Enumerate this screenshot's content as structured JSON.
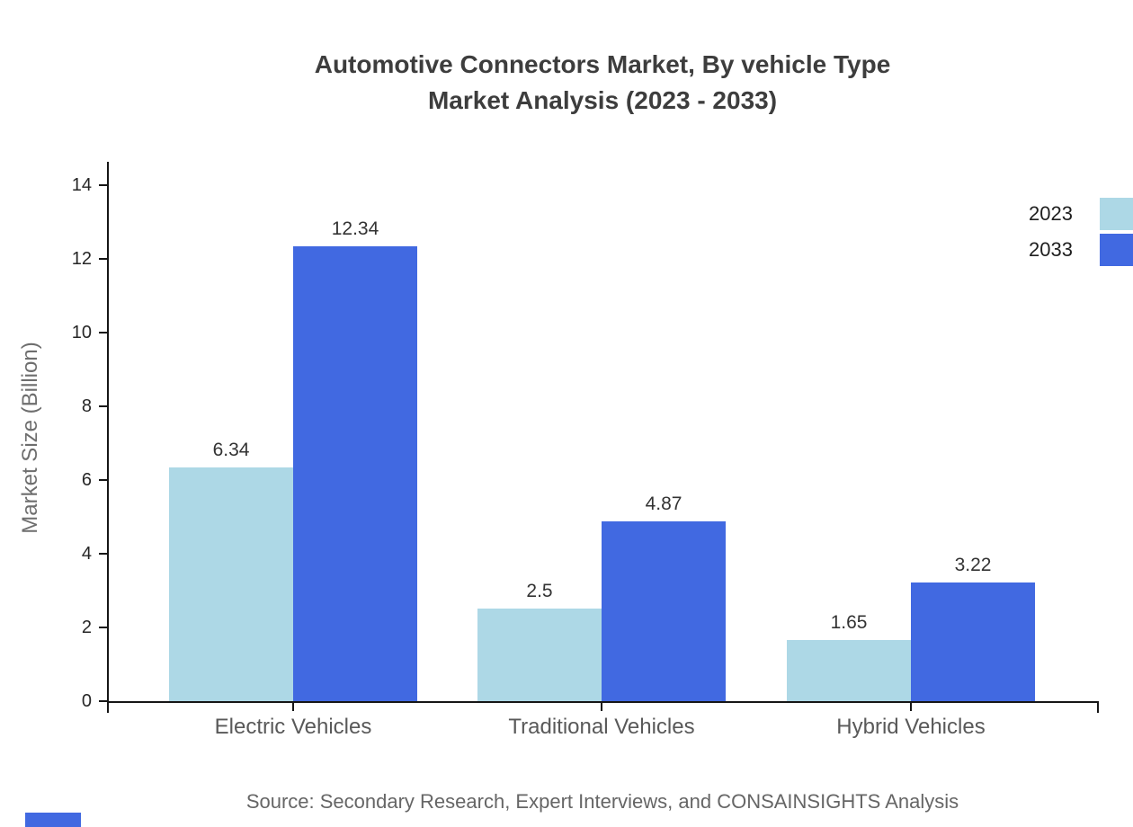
{
  "title": {
    "line1": "Automotive Connectors Market, By vehicle Type",
    "line2": "Market Analysis (2023 - 2033)"
  },
  "source": "Source: Secondary Research, Expert Interviews, and CONSAINSIGHTS Analysis",
  "colors": {
    "series_2023": "#ADD8E6",
    "series_2033": "#4169E1",
    "axis": "#161616",
    "watermark": "#4169E1"
  },
  "chart_data": {
    "type": "bar",
    "categories": [
      "Electric Vehicles",
      "Traditional Vehicles",
      "Hybrid Vehicles"
    ],
    "series": [
      {
        "name": "2023",
        "color": "#ADD8E6",
        "values": [
          6.34,
          2.5,
          1.65
        ]
      },
      {
        "name": "2033",
        "color": "#4169E1",
        "values": [
          12.34,
          4.87,
          3.22
        ]
      }
    ],
    "title": "Automotive Connectors Market, By vehicle Type Market Analysis (2023 - 2033)",
    "xlabel": "",
    "ylabel": "Market Size (Billion)",
    "yticks": [
      0,
      2,
      4,
      6,
      8,
      10,
      12,
      14
    ],
    "ylim": [
      0,
      14.65
    ],
    "grid": false,
    "legend_position": "top-right",
    "value_labels": true
  }
}
